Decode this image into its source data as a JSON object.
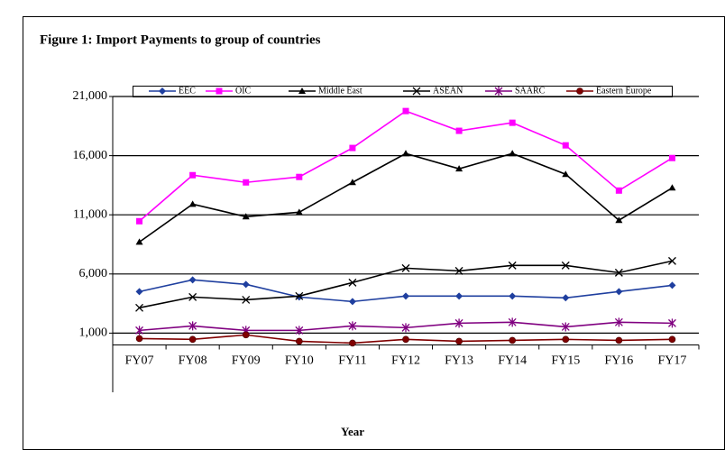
{
  "chart_data": {
    "type": "line",
    "title": "Figure 1: Import  Payments to group of countries",
    "x_label": "Year",
    "categories": [
      "FY07",
      "FY08",
      "FY09",
      "FY10",
      "FY11",
      "FY12",
      "FY13",
      "FY14",
      "FY15",
      "FY16",
      "FY17"
    ],
    "series": [
      {
        "name": "EEC",
        "color": "#1f3f9f",
        "marker": "diamond",
        "values": [
          4510,
          5500,
          5120,
          4050,
          3670,
          4130,
          4130,
          4130,
          3980,
          4510,
          5040
        ]
      },
      {
        "name": "OIC",
        "color": "#ff00ff",
        "marker": "square",
        "values": [
          10460,
          14350,
          13740,
          14200,
          16650,
          19770,
          18100,
          18780,
          16870,
          13050,
          15800
        ]
      },
      {
        "name": "Middle East",
        "color": "#000000",
        "marker": "triangle",
        "values": [
          8700,
          11900,
          10840,
          11220,
          13740,
          16180,
          14890,
          16180,
          14430,
          10540,
          13280
        ]
      },
      {
        "name": "ASEAN",
        "color": "#000000",
        "marker": "x",
        "values": [
          3140,
          4050,
          3820,
          4130,
          5270,
          6490,
          6260,
          6720,
          6720,
          6110,
          7100
        ]
      },
      {
        "name": "SAARC",
        "color": "#800080",
        "marker": "star",
        "values": [
          1230,
          1610,
          1230,
          1230,
          1610,
          1460,
          1840,
          1920,
          1530,
          1920,
          1840
        ]
      },
      {
        "name": "Eastern Europe",
        "color": "#800000",
        "marker": "circle",
        "values": [
          540,
          470,
          850,
          310,
          160,
          470,
          310,
          390,
          470,
          390,
          470
        ]
      }
    ],
    "ylim": [
      -4000,
      21000
    ],
    "yticks": [
      {
        "value": 1000,
        "label": "1,000"
      },
      {
        "value": 6000,
        "label": "6,000"
      },
      {
        "value": 11000,
        "label": "11,000"
      },
      {
        "value": 16000,
        "label": "16,000"
      },
      {
        "value": 21000,
        "label": "21,000"
      }
    ],
    "grid": true,
    "legend": "top"
  }
}
